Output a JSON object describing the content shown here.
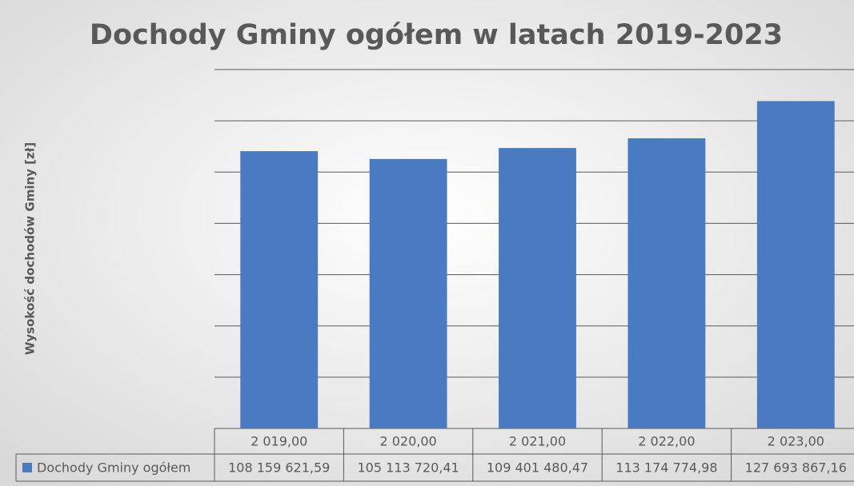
{
  "chart_data": {
    "type": "bar",
    "title": "Dochody Gminy ogółem w latach 2019-2023",
    "y_label": "Wysokość dochodów Gminy [zł]",
    "categories": [
      "2 019,00",
      "2 020,00",
      "2 021,00",
      "2 022,00",
      "2 023,00"
    ],
    "series": [
      {
        "name": "Dochody Gminy ogółem",
        "color": "#4a7ac1",
        "values": [
          108159621.59,
          105113720.41,
          109401480.47,
          113174774.98,
          127693867.16
        ],
        "value_labels": [
          "108 159 621,59",
          "105 113 720,41",
          "109 401 480,47",
          "113 174 774,98",
          "127 693 867,16"
        ]
      }
    ],
    "ylim": [
      0,
      140000000
    ],
    "yticks": [
      0,
      20000000,
      40000000,
      60000000,
      80000000,
      100000000,
      120000000,
      140000000
    ],
    "grid": true
  }
}
